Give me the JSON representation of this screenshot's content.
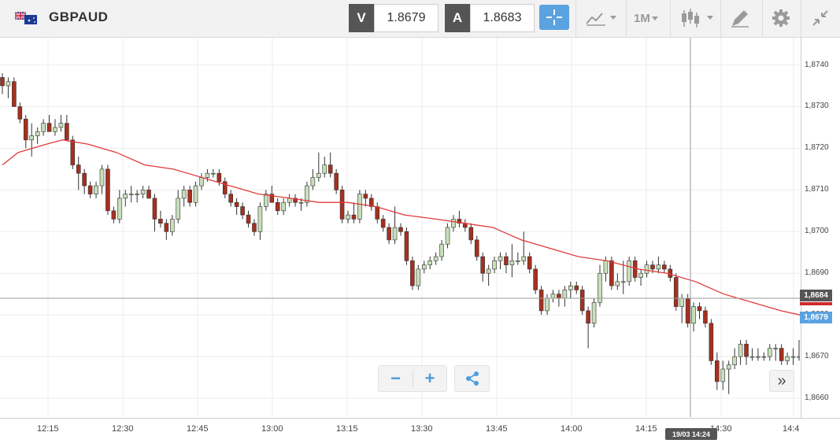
{
  "toolbar": {
    "symbol": "GBPAUD",
    "flag_icon": "gb-au-flag-icon",
    "sell": {
      "label": "V",
      "price": "1.8679"
    },
    "buy": {
      "label": "A",
      "price": "1.8683"
    },
    "crosshair_icon": "crosshair-icon",
    "indicators_icon": "indicators-icon",
    "timeframe": "1M",
    "chart_type_icon": "candlestick-icon",
    "drawing_icon": "drawing-tools-icon",
    "settings_icon": "gear-icon",
    "fullscreen_icon": "collapse-arrows-icon"
  },
  "zoom": {
    "minus": "−",
    "plus": "+",
    "share_icon": "share-icon"
  },
  "scroll_label": "»",
  "price_tags": {
    "buy": "1,8684",
    "sell": "1,8679"
  },
  "cursor_time": "19/03 14:24",
  "colors": {
    "up": "#c8dfb9",
    "down": "#a5301f",
    "ma": "#e03a3a",
    "accent": "#5aa2e0"
  },
  "chart_data": {
    "type": "candlestick",
    "y_tick_labels": [
      "1,8740",
      "1,8730",
      "1,8720",
      "1,8710",
      "1,8700",
      "1,8690",
      "1,8680",
      "1,8670",
      "1,8660"
    ],
    "y_ticks": [
      1.874,
      1.873,
      1.872,
      1.871,
      1.87,
      1.869,
      1.868,
      1.867,
      1.866
    ],
    "ylim": [
      1.86585,
      1.87435
    ],
    "x_tick_labels": [
      "12:15",
      "12:30",
      "12:45",
      "13:00",
      "13:15",
      "13:30",
      "13:45",
      "14:00",
      "14:15",
      "14:30",
      "14:4"
    ],
    "x_range_minutes": [
      "12:08",
      "14:48"
    ],
    "candles_ohlc": [
      [
        1.8737,
        1.8738,
        1.8733,
        1.8735
      ],
      [
        1.8735,
        1.8737,
        1.8732,
        1.8736
      ],
      [
        1.8736,
        1.8737,
        1.873,
        1.873
      ],
      [
        1.873,
        1.8731,
        1.8726,
        1.8727
      ],
      [
        1.8727,
        1.8728,
        1.872,
        1.8722
      ],
      [
        1.8722,
        1.8726,
        1.8718,
        1.8723
      ],
      [
        1.8723,
        1.8725,
        1.8721,
        1.8724
      ],
      [
        1.8724,
        1.8727,
        1.8723,
        1.8726
      ],
      [
        1.8726,
        1.8728,
        1.8724,
        1.8724
      ],
      [
        1.8724,
        1.8727,
        1.8723,
        1.8725
      ],
      [
        1.8725,
        1.8728,
        1.8724,
        1.8726
      ],
      [
        1.8726,
        1.8728,
        1.8722,
        1.8722
      ],
      [
        1.8722,
        1.8723,
        1.8715,
        1.8716
      ],
      [
        1.8716,
        1.8718,
        1.871,
        1.8714
      ],
      [
        1.8714,
        1.8715,
        1.8709,
        1.8711
      ],
      [
        1.8711,
        1.8712,
        1.8708,
        1.8709
      ],
      [
        1.8709,
        1.8712,
        1.8708,
        1.8711
      ],
      [
        1.8711,
        1.8716,
        1.8709,
        1.8715
      ],
      [
        1.8715,
        1.8716,
        1.8704,
        1.8705
      ],
      [
        1.8705,
        1.8706,
        1.8702,
        1.8703
      ],
      [
        1.8703,
        1.871,
        1.8702,
        1.8708
      ],
      [
        1.8708,
        1.871,
        1.8706,
        1.8709
      ],
      [
        1.8709,
        1.8711,
        1.8707,
        1.8709
      ],
      [
        1.8709,
        1.871,
        1.8707,
        1.8709
      ],
      [
        1.8709,
        1.8711,
        1.8708,
        1.871
      ],
      [
        1.871,
        1.8711,
        1.8708,
        1.8708
      ],
      [
        1.8708,
        1.8709,
        1.87,
        1.8703
      ],
      [
        1.8703,
        1.8705,
        1.8701,
        1.8702
      ],
      [
        1.8702,
        1.8703,
        1.8698,
        1.87
      ],
      [
        1.87,
        1.8704,
        1.8699,
        1.8703
      ],
      [
        1.8703,
        1.871,
        1.8702,
        1.8708
      ],
      [
        1.8708,
        1.8711,
        1.8706,
        1.871
      ],
      [
        1.871,
        1.8711,
        1.8706,
        1.8707
      ],
      [
        1.8707,
        1.8712,
        1.8706,
        1.8711
      ],
      [
        1.8711,
        1.8714,
        1.871,
        1.8713
      ],
      [
        1.8713,
        1.8715,
        1.8712,
        1.8714
      ],
      [
        1.8714,
        1.8715,
        1.8713,
        1.8714
      ],
      [
        1.8714,
        1.8715,
        1.8711,
        1.8712
      ],
      [
        1.8712,
        1.8713,
        1.8708,
        1.8709
      ],
      [
        1.8709,
        1.871,
        1.8706,
        1.8707
      ],
      [
        1.8707,
        1.8708,
        1.8704,
        1.8706
      ],
      [
        1.8706,
        1.8707,
        1.8703,
        1.8704
      ],
      [
        1.8704,
        1.8705,
        1.8701,
        1.8702
      ],
      [
        1.8702,
        1.8703,
        1.8699,
        1.87
      ],
      [
        1.87,
        1.8707,
        1.8698,
        1.8706
      ],
      [
        1.8706,
        1.871,
        1.8705,
        1.8709
      ],
      [
        1.8709,
        1.8711,
        1.8707,
        1.8707
      ],
      [
        1.8707,
        1.8708,
        1.8704,
        1.8705
      ],
      [
        1.8705,
        1.8708,
        1.8704,
        1.8707
      ],
      [
        1.8707,
        1.8709,
        1.8706,
        1.8708
      ],
      [
        1.8708,
        1.8709,
        1.8706,
        1.8707
      ],
      [
        1.8707,
        1.8708,
        1.8705,
        1.8707
      ],
      [
        1.8707,
        1.8712,
        1.8706,
        1.8711
      ],
      [
        1.8711,
        1.8715,
        1.871,
        1.8713
      ],
      [
        1.8713,
        1.8719,
        1.8712,
        1.8714
      ],
      [
        1.8714,
        1.8718,
        1.8713,
        1.8716
      ],
      [
        1.8716,
        1.8719,
        1.8713,
        1.8714
      ],
      [
        1.8714,
        1.8715,
        1.8709,
        1.871
      ],
      [
        1.871,
        1.8711,
        1.8702,
        1.8703
      ],
      [
        1.8703,
        1.8705,
        1.8702,
        1.8704
      ],
      [
        1.8704,
        1.8707,
        1.8702,
        1.8703
      ],
      [
        1.8703,
        1.871,
        1.8702,
        1.8709
      ],
      [
        1.8709,
        1.871,
        1.8706,
        1.8708
      ],
      [
        1.8708,
        1.8709,
        1.8705,
        1.8706
      ],
      [
        1.8706,
        1.8707,
        1.8702,
        1.8703
      ],
      [
        1.8703,
        1.8704,
        1.87,
        1.8701
      ],
      [
        1.8701,
        1.8702,
        1.8697,
        1.8698
      ],
      [
        1.8698,
        1.8706,
        1.8697,
        1.8701
      ],
      [
        1.8701,
        1.8702,
        1.8699,
        1.87
      ],
      [
        1.87,
        1.8701,
        1.8692,
        1.8693
      ],
      [
        1.8693,
        1.8694,
        1.8686,
        1.8687
      ],
      [
        1.8687,
        1.8692,
        1.8686,
        1.8691
      ],
      [
        1.8691,
        1.8693,
        1.869,
        1.8692
      ],
      [
        1.8692,
        1.8694,
        1.8691,
        1.8693
      ],
      [
        1.8693,
        1.8695,
        1.8692,
        1.8694
      ],
      [
        1.8694,
        1.8698,
        1.8693,
        1.8697
      ],
      [
        1.8697,
        1.8702,
        1.8696,
        1.8701
      ],
      [
        1.8701,
        1.8704,
        1.87,
        1.8703
      ],
      [
        1.8703,
        1.8705,
        1.8701,
        1.8702
      ],
      [
        1.8702,
        1.8703,
        1.87,
        1.8701
      ],
      [
        1.8701,
        1.8702,
        1.8697,
        1.8698
      ],
      [
        1.8698,
        1.8699,
        1.8693,
        1.8694
      ],
      [
        1.8694,
        1.8695,
        1.8688,
        1.869
      ],
      [
        1.869,
        1.8692,
        1.8687,
        1.8691
      ],
      [
        1.8691,
        1.8694,
        1.869,
        1.8693
      ],
      [
        1.8693,
        1.8695,
        1.8691,
        1.8694
      ],
      [
        1.8694,
        1.8695,
        1.869,
        1.8692
      ],
      [
        1.8692,
        1.8697,
        1.8689,
        1.8693
      ],
      [
        1.8693,
        1.8695,
        1.8692,
        1.8693
      ],
      [
        1.8693,
        1.87,
        1.8692,
        1.8694
      ],
      [
        1.8694,
        1.8695,
        1.869,
        1.8691
      ],
      [
        1.8691,
        1.8692,
        1.8685,
        1.8686
      ],
      [
        1.8686,
        1.8687,
        1.868,
        1.8681
      ],
      [
        1.8681,
        1.8685,
        1.868,
        1.8684
      ],
      [
        1.8684,
        1.8686,
        1.8683,
        1.8685
      ],
      [
        1.8685,
        1.8686,
        1.8682,
        1.8684
      ],
      [
        1.8684,
        1.8687,
        1.8682,
        1.8686
      ],
      [
        1.8686,
        1.8688,
        1.8684,
        1.8687
      ],
      [
        1.8687,
        1.8688,
        1.8685,
        1.8686
      ],
      [
        1.8686,
        1.8687,
        1.868,
        1.8681
      ],
      [
        1.8681,
        1.8682,
        1.8672,
        1.8678
      ],
      [
        1.8678,
        1.8684,
        1.8677,
        1.8683
      ],
      [
        1.8683,
        1.8692,
        1.8682,
        1.869
      ],
      [
        1.869,
        1.8694,
        1.8688,
        1.8693
      ],
      [
        1.8693,
        1.8694,
        1.8686,
        1.8687
      ],
      [
        1.8687,
        1.869,
        1.8686,
        1.8688
      ],
      [
        1.8688,
        1.8693,
        1.8685,
        1.8688
      ],
      [
        1.8688,
        1.8694,
        1.8687,
        1.8693
      ],
      [
        1.8693,
        1.8694,
        1.8688,
        1.8689
      ],
      [
        1.8689,
        1.8691,
        1.8687,
        1.869
      ],
      [
        1.869,
        1.8693,
        1.8689,
        1.8692
      ],
      [
        1.8692,
        1.8693,
        1.869,
        1.8691
      ],
      [
        1.8691,
        1.8694,
        1.869,
        1.8692
      ],
      [
        1.8692,
        1.8693,
        1.869,
        1.8691
      ],
      [
        1.8691,
        1.8692,
        1.8688,
        1.8689
      ],
      [
        1.8689,
        1.869,
        1.8681,
        1.8682
      ],
      [
        1.8682,
        1.8685,
        1.8678,
        1.8684
      ],
      [
        1.8684,
        1.8685,
        1.8677,
        1.8678
      ],
      [
        1.8678,
        1.8683,
        1.8676,
        1.8682
      ],
      [
        1.8682,
        1.8683,
        1.8679,
        1.8681
      ],
      [
        1.8681,
        1.8682,
        1.8677,
        1.8678
      ],
      [
        1.8678,
        1.8679,
        1.8668,
        1.8669
      ],
      [
        1.8669,
        1.8671,
        1.8662,
        1.8664
      ],
      [
        1.8664,
        1.8669,
        1.8662,
        1.8667
      ],
      [
        1.8667,
        1.8669,
        1.8661,
        1.8668
      ],
      [
        1.8668,
        1.8672,
        1.8667,
        1.867
      ],
      [
        1.867,
        1.8674,
        1.8668,
        1.8673
      ],
      [
        1.8673,
        1.8674,
        1.8668,
        1.867
      ],
      [
        1.867,
        1.8672,
        1.8669,
        1.867
      ],
      [
        1.867,
        1.8672,
        1.8669,
        1.867
      ],
      [
        1.867,
        1.8671,
        1.8669,
        1.867
      ],
      [
        1.867,
        1.8673,
        1.8669,
        1.8672
      ],
      [
        1.8672,
        1.8673,
        1.8669,
        1.8672
      ],
      [
        1.8672,
        1.8673,
        1.8668,
        1.8669
      ],
      [
        1.8669,
        1.8671,
        1.8668,
        1.867
      ],
      [
        1.867,
        1.8672,
        1.8668,
        1.867
      ],
      [
        1.867,
        1.8674,
        1.8669,
        1.867
      ]
    ],
    "moving_average": [
      [
        0,
        1.8716
      ],
      [
        5,
        1.8719
      ],
      [
        14,
        1.8721
      ],
      [
        19,
        1.8722
      ],
      [
        27,
        1.8721
      ],
      [
        36,
        1.8719
      ],
      [
        45,
        1.8716
      ],
      [
        54,
        1.8715
      ],
      [
        63,
        1.8713
      ],
      [
        72,
        1.8711
      ],
      [
        81,
        1.8709
      ],
      [
        91,
        1.8708
      ],
      [
        100,
        1.8707
      ],
      [
        109,
        1.8707
      ],
      [
        118,
        1.8706
      ],
      [
        127,
        1.8704
      ],
      [
        137,
        1.8703
      ],
      [
        146,
        1.8702
      ],
      [
        155,
        1.8701
      ],
      [
        164,
        1.8698
      ],
      [
        173,
        1.8696
      ],
      [
        182,
        1.8694
      ],
      [
        191,
        1.8693
      ],
      [
        201,
        1.8691
      ],
      [
        210,
        1.869
      ],
      [
        219,
        1.8688
      ],
      [
        228,
        1.8685
      ],
      [
        237,
        1.8683
      ],
      [
        246,
        1.8681
      ],
      [
        252,
        1.868
      ]
    ],
    "buy_price": 1.8684,
    "sell_price": 1.8679
  }
}
